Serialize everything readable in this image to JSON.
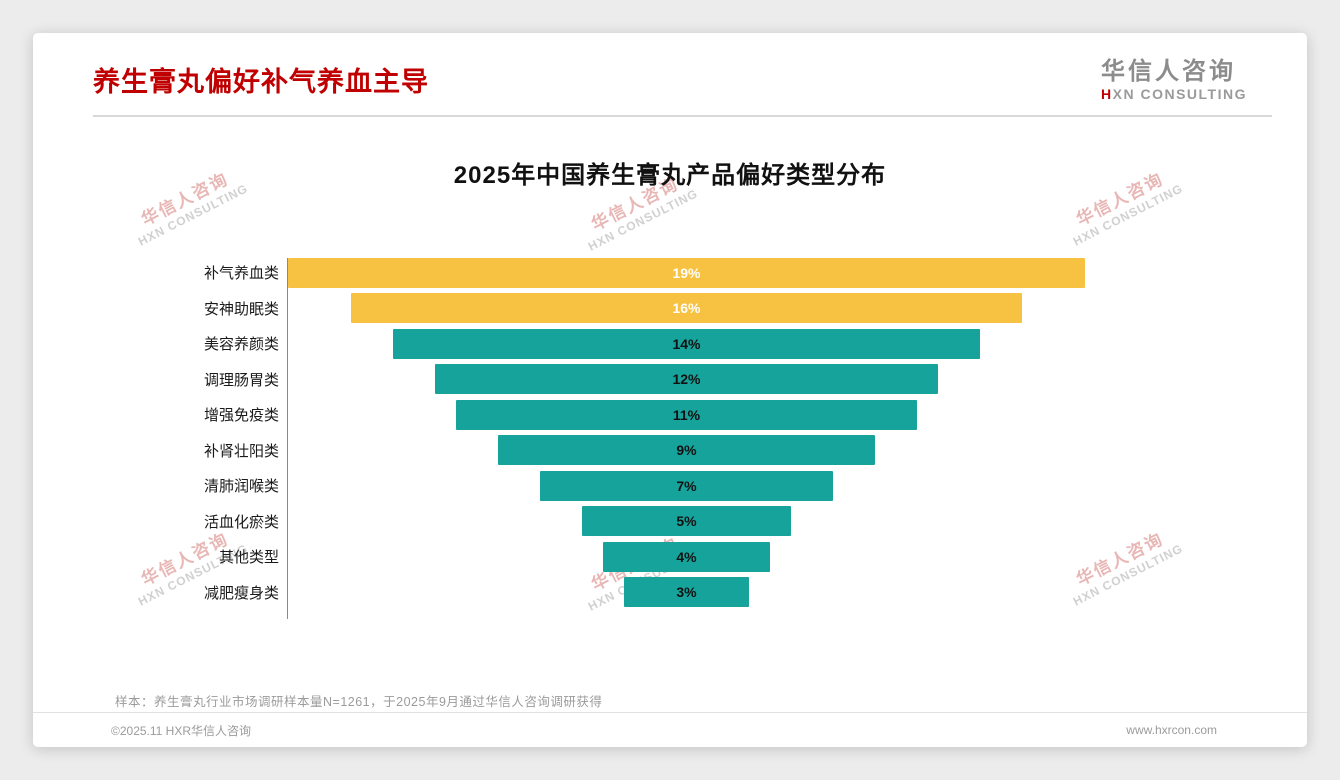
{
  "page": {
    "title": "养生膏丸偏好补气养血主导",
    "logo": {
      "cn": "华信人咨询",
      "en_first": "H",
      "en_rest": "XN CONSULTING"
    },
    "watermark": {
      "line1": "华信人咨询",
      "line2": "HXN CONSULTING"
    },
    "footnote": "样本：养生膏丸行业市场调研样本量N=1261，于2025年9月通过华信人咨询调研获得",
    "footer": {
      "left": "©2025.11 HXR华信人咨询",
      "right": "www.hxrcon.com"
    }
  },
  "chart_data": {
    "type": "bar",
    "subtype": "centered-funnel-horizontal",
    "title": "2025年中国养生膏丸产品偏好类型分布",
    "categories": [
      "补气养血类",
      "安神助眠类",
      "美容养颜类",
      "调理肠胃类",
      "增强免疫类",
      "补肾壮阳类",
      "清肺润喉类",
      "活血化瘀类",
      "其他类型",
      "减肥瘦身类"
    ],
    "values": [
      19,
      16,
      14,
      12,
      11,
      9,
      7,
      5,
      4,
      3
    ],
    "unit": "%",
    "xlim": [
      0,
      19
    ],
    "grid": false,
    "legend": "none",
    "highlight_count": 2,
    "colors": {
      "highlight": "#f7c242",
      "bar": "#16a39b",
      "highlight_text": "#ffffff",
      "bar_text": "#111111",
      "title_red": "#c00000"
    }
  }
}
